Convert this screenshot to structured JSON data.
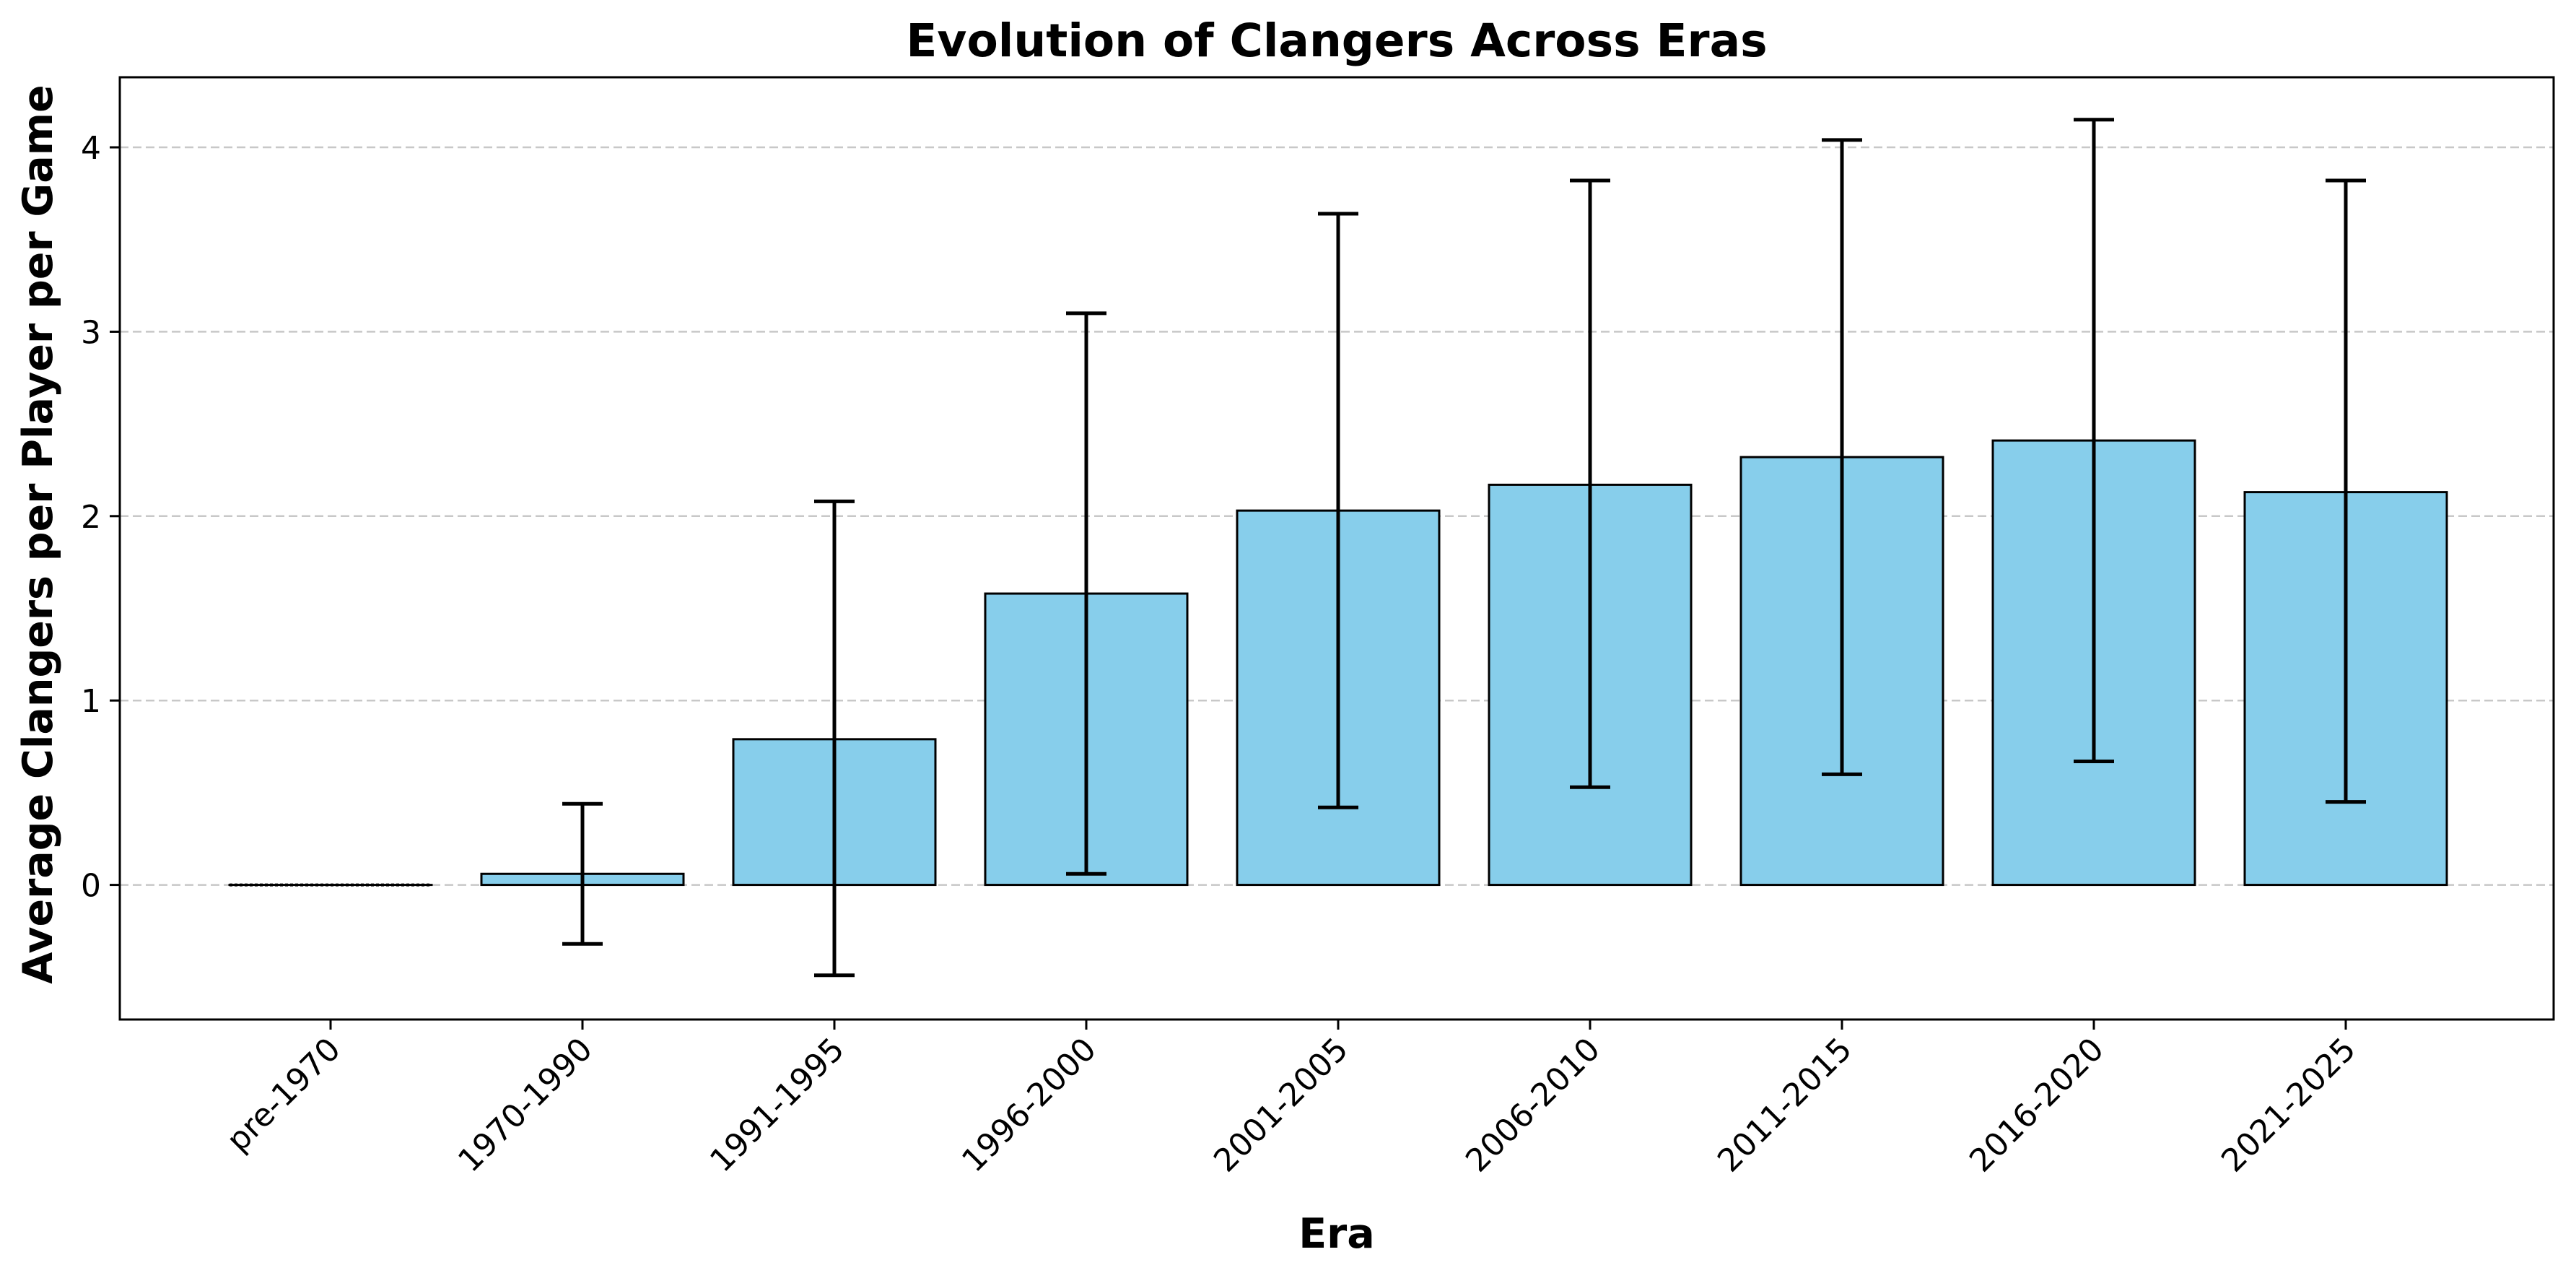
{
  "chart_data": {
    "type": "bar",
    "title": "Evolution of Clangers Across Eras",
    "xlabel": "Era",
    "ylabel": "Average Clangers per Player per Game",
    "categories": [
      "pre-1970",
      "1970-1990",
      "1991-1995",
      "1996-2000",
      "2001-2005",
      "2006-2010",
      "2011-2015",
      "2016-2020",
      "2021-2025"
    ],
    "values": [
      0.0,
      0.06,
      0.79,
      1.58,
      2.03,
      2.17,
      2.32,
      2.41,
      2.13
    ],
    "error_bars": {
      "lower": [
        0.0,
        -0.32,
        -0.49,
        0.06,
        0.42,
        0.53,
        0.6,
        0.67,
        0.45
      ],
      "upper": [
        0.0,
        0.44,
        2.08,
        3.1,
        3.64,
        3.82,
        4.04,
        4.15,
        3.82
      ]
    },
    "ylim": [
      -0.73,
      4.38
    ],
    "y_ticks": [
      "0",
      "1",
      "2",
      "3",
      "4"
    ],
    "grid": "horizontal dashed",
    "legend": "none",
    "colors": {
      "bar_fill": "#87CEEB",
      "bar_edge": "#000000",
      "error_bar": "#000000",
      "grid": "#c8c8c8"
    }
  }
}
